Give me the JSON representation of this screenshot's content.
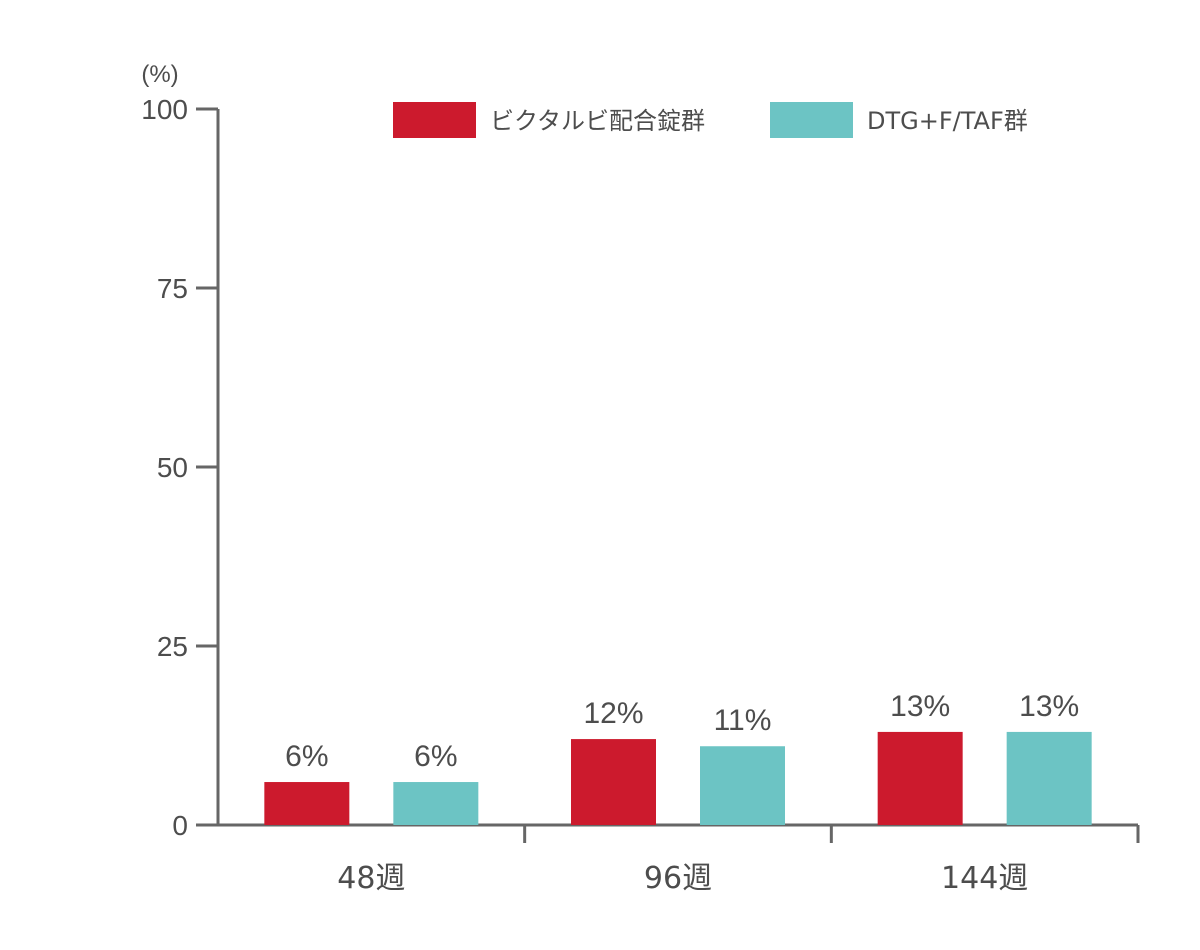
{
  "chart_data": {
    "type": "bar",
    "unit_label": "(%)",
    "ylim": [
      0,
      100
    ],
    "yticks": [
      "0",
      "25",
      "50",
      "75",
      "100"
    ],
    "categories": [
      "48週",
      "96週",
      "144週"
    ],
    "series": [
      {
        "name": "ビクタルビ配合錠群",
        "color": "#cc1a2d",
        "values": [
          6,
          12,
          13
        ],
        "labels": [
          "6%",
          "12%",
          "13%"
        ]
      },
      {
        "name": "DTG+F/TAF群",
        "color": "#6cc4c4",
        "values": [
          6,
          11,
          13
        ],
        "labels": [
          "6%",
          "11%",
          "13%"
        ]
      }
    ],
    "legend_position": "top-right",
    "grid": false
  }
}
